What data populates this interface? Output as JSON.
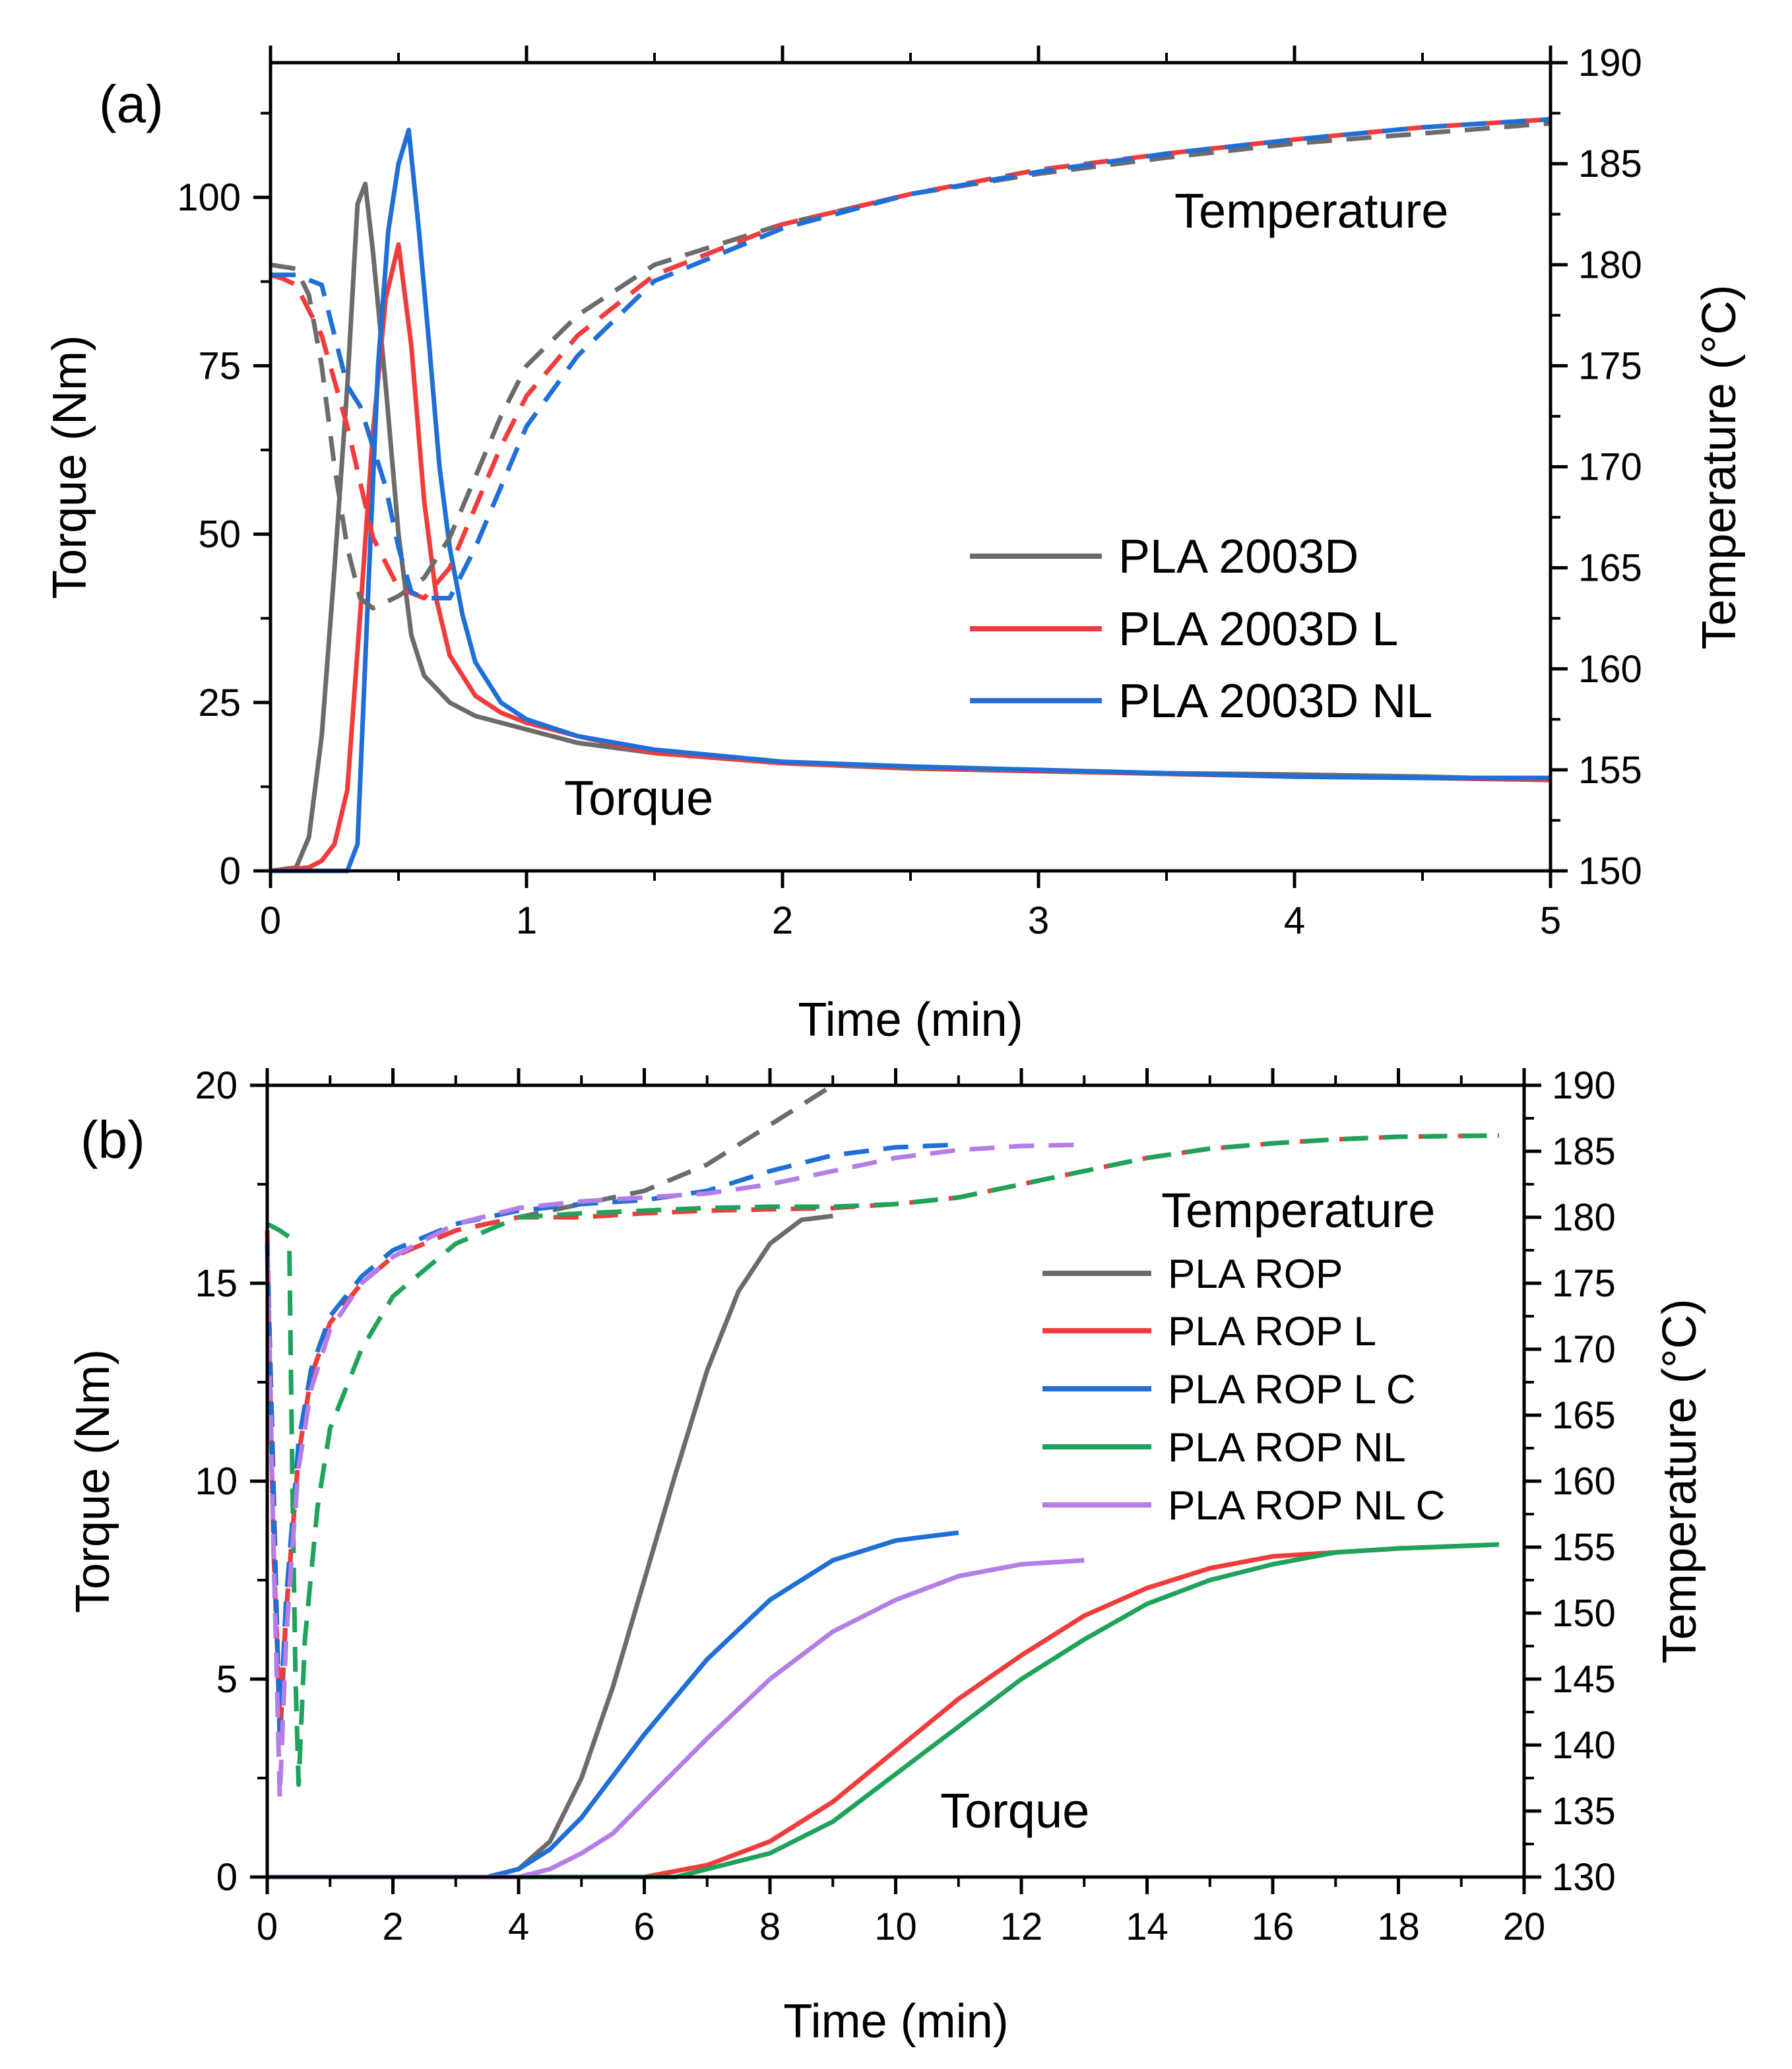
{
  "chart_data": [
    {
      "type": "line",
      "panel_label": "(a)",
      "xlabel": "Time (min)",
      "ylabel": "Torque (Nm)",
      "y2label": "Temperature (°C)",
      "xlim": [
        0,
        5
      ],
      "ylim": [
        0,
        120
      ],
      "y2lim": [
        150,
        190
      ],
      "xticks": [
        0,
        1,
        2,
        3,
        4,
        5
      ],
      "yticks": [
        0,
        25,
        50,
        75,
        100
      ],
      "y2ticks": [
        150,
        155,
        160,
        165,
        170,
        175,
        180,
        185,
        190
      ],
      "grid": false,
      "legend_position": "center-right",
      "annotations": [
        "Temperature",
        "Torque"
      ],
      "series": [
        {
          "name": "PLA 2003D",
          "color": "#6b6b6b",
          "axis": "left",
          "style": "solid",
          "x": [
            0,
            0.1,
            0.15,
            0.2,
            0.25,
            0.3,
            0.34,
            0.37,
            0.4,
            0.45,
            0.5,
            0.55,
            0.6,
            0.7,
            0.8,
            0.9,
            1.0,
            1.2,
            1.5,
            2.0,
            2.5,
            3.0,
            3.5,
            4.0,
            4.5,
            5.0
          ],
          "y": [
            0,
            0.5,
            5,
            20,
            45,
            72,
            99,
            102,
            92,
            72,
            50,
            35,
            29,
            25,
            23,
            22,
            21,
            19,
            17.5,
            16,
            15.2,
            14.8,
            14.5,
            14.3,
            14,
            13.5
          ]
        },
        {
          "name": "PLA 2003D L",
          "color": "#f03c3c",
          "axis": "left",
          "style": "solid",
          "x": [
            0,
            0.15,
            0.2,
            0.25,
            0.3,
            0.35,
            0.4,
            0.45,
            0.5,
            0.55,
            0.6,
            0.65,
            0.7,
            0.8,
            0.9,
            1.0,
            1.2,
            1.5,
            2.0,
            2.5,
            3.0,
            3.5,
            4.0,
            4.5,
            5.0
          ],
          "y": [
            0,
            0.5,
            1.5,
            4,
            12,
            38,
            65,
            85,
            93,
            78,
            55,
            40,
            32,
            26,
            23.5,
            22,
            20,
            17.5,
            16,
            15.3,
            14.8,
            14.4,
            14,
            13.8,
            13.5
          ]
        },
        {
          "name": "PLA 2003D NL",
          "color": "#1f6fd6",
          "axis": "left",
          "style": "solid",
          "x": [
            0,
            0.3,
            0.34,
            0.38,
            0.42,
            0.46,
            0.5,
            0.54,
            0.58,
            0.62,
            0.66,
            0.7,
            0.75,
            0.8,
            0.9,
            1.0,
            1.2,
            1.5,
            2.0,
            2.5,
            3.0,
            3.5,
            4.0,
            4.5,
            5.0
          ],
          "y": [
            0,
            0,
            4,
            40,
            75,
            95,
            105,
            110,
            95,
            78,
            60,
            48,
            38,
            31,
            25,
            22.5,
            20,
            18,
            16.2,
            15.5,
            15,
            14.5,
            14,
            13.8,
            13.8
          ]
        },
        {
          "name": "PLA 2003D temperature",
          "color": "#6b6b6b",
          "axis": "right",
          "style": "dashed",
          "x": [
            0,
            0.1,
            0.15,
            0.2,
            0.25,
            0.3,
            0.35,
            0.4,
            0.45,
            0.5,
            0.6,
            0.7,
            0.8,
            0.9,
            1.0,
            1.2,
            1.5,
            2.0,
            2.5,
            3.0,
            3.5,
            4.0,
            4.5,
            5.0
          ],
          "y": [
            180,
            179.8,
            178.5,
            175,
            170,
            166,
            163.5,
            163,
            163.3,
            163.6,
            164.5,
            166.5,
            169.5,
            172.5,
            175,
            177.5,
            180,
            182,
            183.5,
            184.5,
            185.3,
            186,
            186.5,
            187
          ]
        },
        {
          "name": "PLA 2003D L temperature",
          "color": "#f03c3c",
          "axis": "right",
          "style": "dashed",
          "x": [
            0,
            0.05,
            0.1,
            0.2,
            0.3,
            0.4,
            0.5,
            0.6,
            0.7,
            0.8,
            0.9,
            1.0,
            1.2,
            1.5,
            2.0,
            2.5,
            3.0,
            3.5,
            4.0,
            4.5,
            5.0
          ],
          "y": [
            179.5,
            179.3,
            179,
            176.5,
            172,
            166.5,
            164,
            163.5,
            165,
            168,
            171,
            173.5,
            176.5,
            179.5,
            182,
            183.5,
            184.7,
            185.5,
            186.2,
            186.8,
            187.2
          ]
        },
        {
          "name": "PLA 2003D NL temperature",
          "color": "#1f6fd6",
          "axis": "right",
          "style": "dashed",
          "x": [
            0,
            0.1,
            0.2,
            0.25,
            0.3,
            0.35,
            0.4,
            0.45,
            0.5,
            0.55,
            0.6,
            0.7,
            0.8,
            0.9,
            1.0,
            1.2,
            1.5,
            2.0,
            2.5,
            3.0,
            3.5,
            4.0,
            4.5,
            5.0
          ],
          "y": [
            179.5,
            179.5,
            179,
            176.5,
            174,
            173,
            171,
            169,
            166,
            163.8,
            163.5,
            163.5,
            166,
            169,
            172,
            175.5,
            179.2,
            181.8,
            183.5,
            184.6,
            185.5,
            186.2,
            186.8,
            187.2
          ]
        }
      ]
    },
    {
      "type": "line",
      "panel_label": "(b)",
      "xlabel": "Time (min)",
      "ylabel": "Torque (Nm)",
      "y2label": "Temperature (°C)",
      "xlim": [
        0,
        20
      ],
      "ylim": [
        0,
        20
      ],
      "y2lim": [
        130,
        190
      ],
      "xticks": [
        0,
        2,
        4,
        6,
        8,
        10,
        12,
        14,
        16,
        18,
        20
      ],
      "yticks": [
        0,
        5,
        10,
        15,
        20
      ],
      "y2ticks": [
        130,
        135,
        140,
        145,
        150,
        155,
        160,
        165,
        170,
        175,
        180,
        185,
        190
      ],
      "grid": false,
      "legend_position": "center-right",
      "annotations": [
        "Temperature",
        "Torque"
      ],
      "series": [
        {
          "name": "PLA ROP",
          "color": "#6b6b6b",
          "axis": "left",
          "style": "solid",
          "x": [
            0,
            3.5,
            4.0,
            4.5,
            5.0,
            5.5,
            6.0,
            6.5,
            7.0,
            7.5,
            8.0,
            8.5,
            9.0
          ],
          "y": [
            0,
            0,
            0.2,
            0.9,
            2.5,
            4.8,
            7.5,
            10.2,
            12.8,
            14.8,
            16.0,
            16.6,
            16.7
          ]
        },
        {
          "name": "PLA ROP L",
          "color": "#f03c3c",
          "axis": "left",
          "style": "solid",
          "x": [
            0,
            6.0,
            7.0,
            8.0,
            9.0,
            10.0,
            11.0,
            12.0,
            13.0,
            14.0,
            15.0,
            16.0,
            17.0,
            18.0,
            19.6
          ],
          "y": [
            0,
            0,
            0.3,
            0.9,
            1.9,
            3.2,
            4.5,
            5.6,
            6.6,
            7.3,
            7.8,
            8.1,
            8.2,
            8.3,
            8.4
          ]
        },
        {
          "name": "PLA ROP L C",
          "color": "#1f6fd6",
          "axis": "left",
          "style": "solid",
          "x": [
            0,
            3.5,
            4.0,
            4.5,
            5.0,
            6.0,
            7.0,
            8.0,
            9.0,
            10.0,
            11.0
          ],
          "y": [
            0,
            0,
            0.2,
            0.7,
            1.5,
            3.6,
            5.5,
            7.0,
            8.0,
            8.5,
            8.7
          ]
        },
        {
          "name": "PLA ROP NL",
          "color": "#1fa35c",
          "axis": "left",
          "style": "solid",
          "x": [
            0,
            6.5,
            7.0,
            8.0,
            9.0,
            10.0,
            11.0,
            12.0,
            13.0,
            14.0,
            15.0,
            16.0,
            17.0,
            18.0,
            19.6
          ],
          "y": [
            0,
            0,
            0.2,
            0.6,
            1.4,
            2.6,
            3.8,
            5.0,
            6.0,
            6.9,
            7.5,
            7.9,
            8.2,
            8.3,
            8.4
          ]
        },
        {
          "name": "PLA ROP NL C",
          "color": "#b57ee6",
          "axis": "left",
          "style": "solid",
          "x": [
            0,
            4.0,
            4.5,
            5.0,
            5.5,
            6.0,
            7.0,
            8.0,
            9.0,
            10.0,
            11.0,
            12.0,
            13.0
          ],
          "y": [
            0,
            0,
            0.2,
            0.6,
            1.1,
            1.9,
            3.5,
            5.0,
            6.2,
            7.0,
            7.6,
            7.9,
            8.0
          ]
        },
        {
          "name": "PLA ROP temperature",
          "color": "#6b6b6b",
          "axis": "right",
          "style": "dashed",
          "x": [
            0,
            0.1,
            0.2,
            0.3,
            0.4,
            0.5,
            0.7,
            1.0,
            1.5,
            2.0,
            3.0,
            4.0,
            5.0,
            6.0,
            7.0,
            8.0,
            9.0
          ],
          "y": [
            178,
            160,
            140,
            150,
            156,
            162,
            168,
            172,
            175,
            177,
            179,
            180,
            181,
            182,
            184,
            187,
            190
          ]
        },
        {
          "name": "PLA ROP L temperature",
          "color": "#f03c3c",
          "axis": "right",
          "style": "dashed",
          "x": [
            0,
            0.1,
            0.2,
            0.3,
            0.4,
            0.5,
            0.7,
            1.0,
            1.5,
            2.0,
            3.0,
            4.0,
            5.0,
            6.0,
            7.0,
            8.0,
            9.0,
            10.0,
            11.0,
            12.0,
            13.0,
            14.0,
            15.0,
            16.0,
            17.0,
            18.0,
            19.6
          ],
          "y": [
            179,
            155,
            142,
            150,
            156,
            162,
            168,
            172,
            175,
            177,
            179,
            180,
            180,
            180.3,
            180.5,
            180.6,
            180.7,
            181,
            181.5,
            182.5,
            183.5,
            184.5,
            185.2,
            185.6,
            185.9,
            186.1,
            186.2
          ]
        },
        {
          "name": "PLA ROP L C temperature",
          "color": "#1f6fd6",
          "axis": "right",
          "style": "dashed",
          "x": [
            0,
            0.1,
            0.2,
            0.3,
            0.4,
            0.5,
            0.7,
            1.0,
            1.5,
            2.0,
            3.0,
            4.0,
            5.0,
            6.0,
            7.0,
            8.0,
            9.0,
            10.0,
            11.0
          ],
          "y": [
            178,
            158,
            141,
            151,
            157,
            163,
            168.5,
            172.5,
            175.5,
            177.5,
            179.5,
            180.5,
            181,
            181.3,
            182,
            183.5,
            184.7,
            185.3,
            185.5
          ]
        },
        {
          "name": "PLA ROP NL temperature",
          "color": "#1fa35c",
          "axis": "right",
          "style": "dashed",
          "x": [
            0,
            0.2,
            0.35,
            0.4,
            0.45,
            0.5,
            0.6,
            0.8,
            1.0,
            1.5,
            2.0,
            3.0,
            4.0,
            5.0,
            6.0,
            7.0,
            8.0,
            9.0,
            10.0,
            11.0,
            12.0,
            13.0,
            14.0,
            15.0,
            16.0,
            17.0,
            18.0,
            19.6
          ],
          "y": [
            179.5,
            179,
            178.5,
            160,
            145,
            137,
            148,
            158,
            164,
            170,
            174,
            178,
            180,
            180.3,
            180.5,
            180.7,
            180.8,
            180.8,
            181,
            181.5,
            182.5,
            183.5,
            184.5,
            185.2,
            185.6,
            185.9,
            186.1,
            186.2
          ]
        },
        {
          "name": "PLA ROP NL C temperature",
          "color": "#b57ee6",
          "axis": "right",
          "style": "dashed",
          "x": [
            0,
            0.1,
            0.2,
            0.3,
            0.4,
            0.5,
            0.7,
            1.0,
            1.5,
            2.0,
            3.0,
            4.0,
            5.0,
            6.0,
            7.0,
            8.0,
            9.0,
            10.0,
            11.0,
            12.0,
            13.0
          ],
          "y": [
            177,
            155,
            136,
            148,
            155,
            161,
            167,
            171.5,
            175,
            177,
            179.5,
            180.7,
            181.2,
            181.5,
            181.8,
            182.5,
            183.5,
            184.5,
            185.1,
            185.4,
            185.5
          ]
        }
      ]
    }
  ],
  "legend_a": [
    "PLA 2003D",
    "PLA 2003D L",
    "PLA 2003D NL"
  ],
  "legend_b": [
    "PLA ROP",
    "PLA ROP L",
    "PLA ROP L C",
    "PLA ROP NL",
    "PLA ROP NL C"
  ]
}
